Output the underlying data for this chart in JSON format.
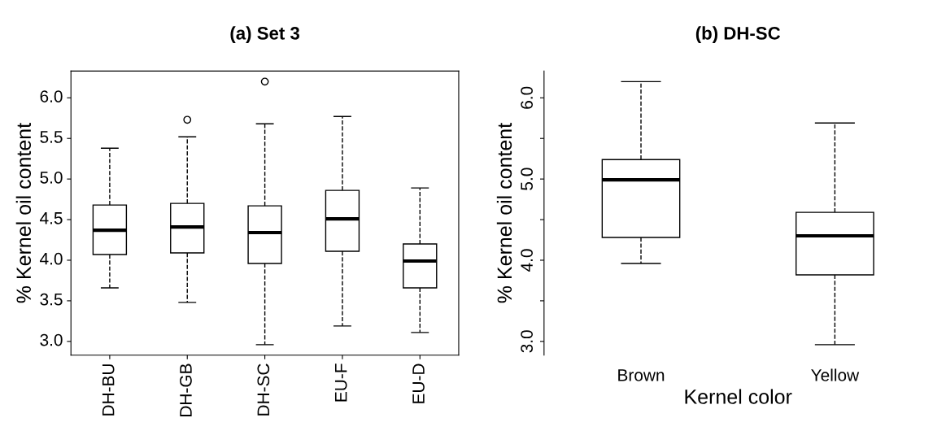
{
  "chart_data": [
    {
      "type": "box",
      "title": "(a) Set 3",
      "ylabel": "% Kernel oil content",
      "categories": [
        "DH-BU",
        "DH-GB",
        "DH-SC",
        "EU-F",
        "EU-D"
      ],
      "boxes": [
        {
          "low": 3.66,
          "q1": 4.07,
          "median": 4.37,
          "q3": 4.68,
          "high": 5.38
        },
        {
          "low": 3.48,
          "q1": 4.09,
          "median": 4.41,
          "q3": 4.7,
          "high": 5.52,
          "outliers": [
            5.73
          ]
        },
        {
          "low": 2.96,
          "q1": 3.96,
          "median": 4.34,
          "q3": 4.67,
          "high": 5.68,
          "outliers": [
            6.2
          ]
        },
        {
          "low": 3.19,
          "q1": 4.11,
          "median": 4.51,
          "q3": 4.86,
          "high": 5.77
        },
        {
          "low": 3.11,
          "q1": 3.66,
          "median": 3.99,
          "q3": 4.2,
          "high": 4.89
        }
      ],
      "color": "#000000",
      "ylim": [
        2.83,
        6.33
      ],
      "yticks": [
        {
          "value": 3.0,
          "label": "3.0"
        },
        3.5,
        {
          "value": 4.0,
          "label": "4.0"
        },
        4.5,
        {
          "value": 5.0,
          "label": "5.0"
        },
        5.5,
        {
          "value": 6.0,
          "label": "6.0"
        }
      ],
      "line_style": "dashed",
      "grid": false,
      "legend": false
    },
    {
      "type": "box",
      "title": "(b) DH-SC",
      "ylabel": "% Kernel oil content",
      "xlabel": "Kernel color",
      "categories": [
        "Brown",
        "Yellow"
      ],
      "boxes": [
        {
          "low": 3.96,
          "q1": 4.28,
          "median": 4.99,
          "q3": 5.24,
          "high": 6.2
        },
        {
          "low": 2.96,
          "q1": 3.82,
          "median": 4.3,
          "q3": 4.59,
          "high": 5.69
        }
      ],
      "color": "#000000",
      "ylim": [
        2.83,
        6.33
      ],
      "yticks": [
        {
          "value": 3.0,
          "label": "3.0"
        },
        {
          "value": 3.5,
          "label": null
        },
        {
          "value": 4.0,
          "label": "4.0"
        },
        {
          "value": 4.5,
          "label": null
        },
        {
          "value": 5.0,
          "label": "5.0"
        },
        {
          "value": 5.5,
          "label": null
        },
        {
          "value": 6.0,
          "label": "6.0"
        }
      ],
      "line_style": "dashed",
      "grid": false,
      "legend": false
    }
  ]
}
